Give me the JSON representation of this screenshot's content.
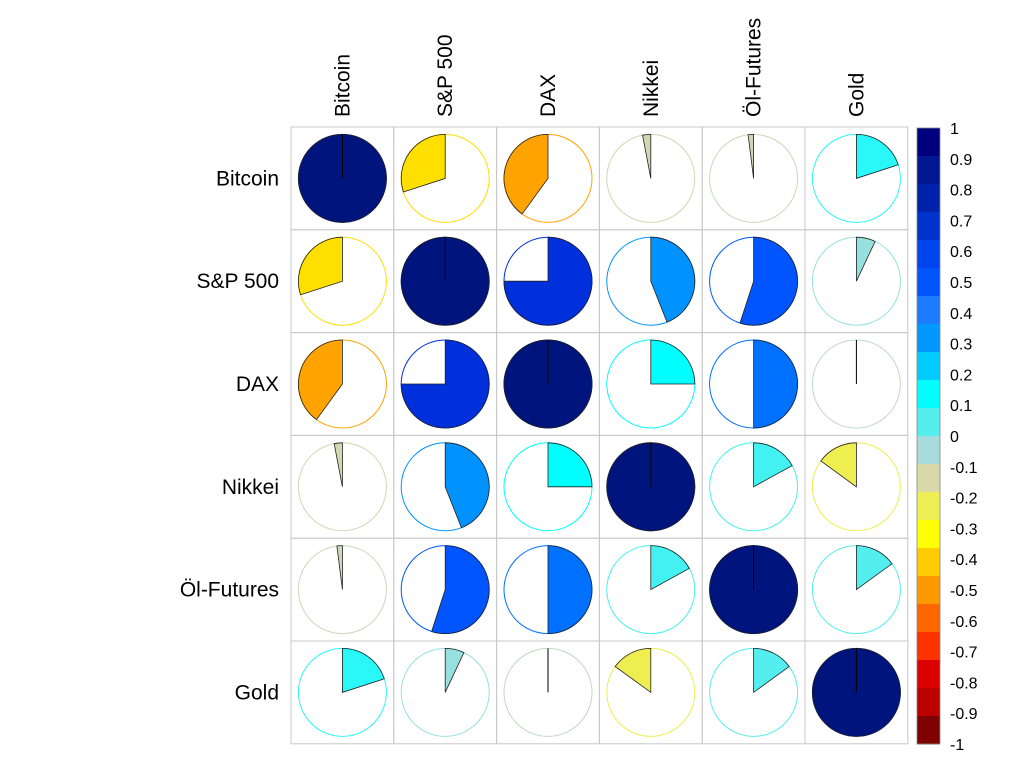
{
  "chart_data": {
    "type": "correlation-matrix-pie",
    "variables": [
      "Bitcoin",
      "S&P 500",
      "DAX",
      "Nikkei",
      "Öl-Futures",
      "Gold"
    ],
    "matrix": [
      [
        1.0,
        -0.3,
        -0.4,
        -0.03,
        -0.02,
        0.2
      ],
      [
        -0.3,
        1.0,
        0.75,
        0.44,
        0.55,
        0.07
      ],
      [
        -0.4,
        0.75,
        1.0,
        0.25,
        0.5,
        0.0
      ],
      [
        -0.03,
        0.44,
        0.25,
        1.0,
        0.17,
        -0.15
      ],
      [
        -0.02,
        0.55,
        0.5,
        0.17,
        1.0,
        0.15
      ],
      [
        0.2,
        0.07,
        0.0,
        -0.15,
        0.15,
        1.0
      ]
    ],
    "colorbar": {
      "range": [
        -1,
        1
      ],
      "tick_labels": [
        "1",
        "0.9",
        "0.8",
        "0.7",
        "0.6",
        "0.5",
        "0.4",
        "0.3",
        "0.2",
        "0.1",
        "0",
        "-0.1",
        "-0.2",
        "-0.3",
        "-0.4",
        "-0.5",
        "-0.6",
        "-0.7",
        "-0.8",
        "-0.9",
        "-1"
      ],
      "colors": [
        "#00007F",
        "#001791",
        "#0022AA",
        "#0033CC",
        "#0044EE",
        "#0055FF",
        "#1C7BFF",
        "#0099FF",
        "#00CCFF",
        "#00FFFF",
        "#55EEEE",
        "#A8DCDC",
        "#D8D8A8",
        "#EEEE55",
        "#FFFF00",
        "#FFCC00",
        "#FF9900",
        "#FF6600",
        "#FF3300",
        "#DD0000",
        "#BB0000",
        "#7F0000"
      ]
    }
  }
}
